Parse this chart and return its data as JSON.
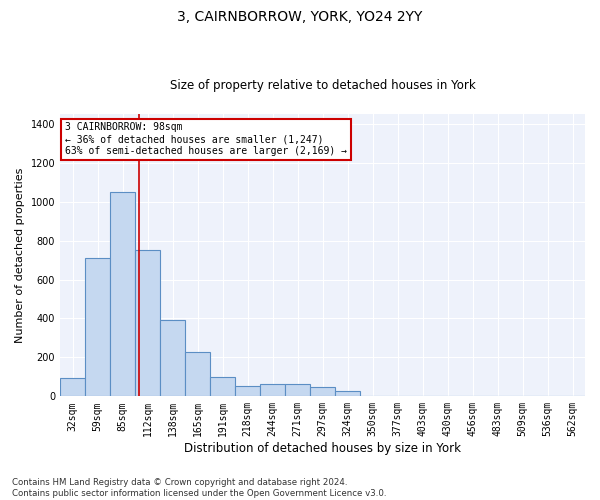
{
  "title1": "3, CAIRNBORROW, YORK, YO24 2YY",
  "title2": "Size of property relative to detached houses in York",
  "xlabel": "Distribution of detached houses by size in York",
  "ylabel": "Number of detached properties",
  "categories": [
    "32sqm",
    "59sqm",
    "85sqm",
    "112sqm",
    "138sqm",
    "165sqm",
    "191sqm",
    "218sqm",
    "244sqm",
    "271sqm",
    "297sqm",
    "324sqm",
    "350sqm",
    "377sqm",
    "403sqm",
    "430sqm",
    "456sqm",
    "483sqm",
    "509sqm",
    "536sqm",
    "562sqm"
  ],
  "values": [
    95,
    710,
    1050,
    750,
    390,
    230,
    100,
    55,
    65,
    65,
    50,
    25,
    0,
    0,
    0,
    0,
    0,
    0,
    0,
    0,
    0
  ],
  "bar_color": "#c5d8f0",
  "bar_edge_color": "#5b8ec4",
  "background_color": "#eef2fb",
  "grid_color": "#ffffff",
  "vline_color": "#cc0000",
  "vline_xindex": 2.65,
  "annotation_text": "3 CAIRNBORROW: 98sqm\n← 36% of detached houses are smaller (1,247)\n63% of semi-detached houses are larger (2,169) →",
  "annotation_box_color": "#ffffff",
  "annotation_box_edge": "#cc0000",
  "footnote": "Contains HM Land Registry data © Crown copyright and database right 2024.\nContains public sector information licensed under the Open Government Licence v3.0.",
  "ylim": [
    0,
    1450
  ],
  "yticks": [
    0,
    200,
    400,
    600,
    800,
    1000,
    1200,
    1400
  ],
  "title1_fontsize": 10,
  "title2_fontsize": 8.5,
  "ylabel_fontsize": 8,
  "xlabel_fontsize": 8.5,
  "tick_fontsize": 7,
  "annot_fontsize": 7
}
